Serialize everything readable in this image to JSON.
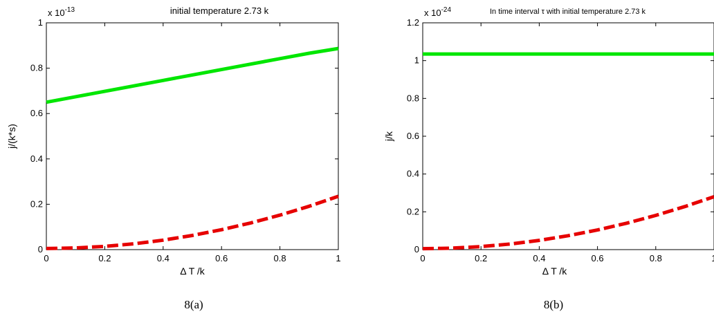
{
  "chart_data": [
    {
      "type": "line",
      "caption": "8(a)",
      "title": "initial temperature 2.73 k",
      "exponent_base": "x 10",
      "exponent_power": "-13",
      "xlabel": "Δ T  /k",
      "ylabel": "j/(k*s)",
      "xlim": [
        0,
        1
      ],
      "ylim": [
        0,
        1
      ],
      "xticks": [
        0,
        0.2,
        0.4,
        0.6,
        0.8,
        1
      ],
      "yticks": [
        0,
        0.2,
        0.4,
        0.6,
        0.8,
        1
      ],
      "xtick_labels": [
        "0",
        "0.2",
        "0.4",
        "0.6",
        "0.8",
        "1"
      ],
      "ytick_labels": [
        "0",
        "0.2",
        "0.4",
        "0.6",
        "0.8",
        "1"
      ],
      "grid": false,
      "series": [
        {
          "color": "#00e600",
          "style": "solid",
          "x": [
            0,
            0.1,
            0.2,
            0.3,
            0.4,
            0.5,
            0.6,
            0.7,
            0.8,
            0.9,
            1.0
          ],
          "y": [
            0.65,
            0.674,
            0.698,
            0.722,
            0.746,
            0.77,
            0.794,
            0.818,
            0.842,
            0.866,
            0.887
          ]
        },
        {
          "color": "#e60000",
          "style": "dashed",
          "x": [
            0,
            0.1,
            0.2,
            0.3,
            0.4,
            0.5,
            0.6,
            0.7,
            0.8,
            0.9,
            1.0
          ],
          "y": [
            0.005,
            0.0073,
            0.0142,
            0.0257,
            0.0418,
            0.0625,
            0.0878,
            0.1177,
            0.1522,
            0.1913,
            0.235
          ]
        }
      ]
    },
    {
      "type": "line",
      "caption": "8(b)",
      "title": "In time interval τ with initial temperature 2.73 k",
      "exponent_base": "x 10",
      "exponent_power": "-24",
      "xlabel": "Δ T  /k",
      "ylabel": "j/k",
      "xlim": [
        0,
        1
      ],
      "ylim": [
        0,
        1.2
      ],
      "xticks": [
        0,
        0.2,
        0.4,
        0.6,
        0.8,
        1
      ],
      "yticks": [
        0,
        0.2,
        0.4,
        0.6,
        0.8,
        1,
        1.2
      ],
      "xtick_labels": [
        "0",
        "0.2",
        "0.4",
        "0.6",
        "0.8",
        "1"
      ],
      "ytick_labels": [
        "0",
        "0.2",
        "0.4",
        "0.6",
        "0.8",
        "1",
        "1.2"
      ],
      "grid": false,
      "series": [
        {
          "color": "#00e600",
          "style": "solid",
          "x": [
            0,
            0.5,
            1.0
          ],
          "y": [
            1.035,
            1.035,
            1.035
          ]
        },
        {
          "color": "#e60000",
          "style": "dashed",
          "x": [
            0,
            0.1,
            0.2,
            0.3,
            0.4,
            0.5,
            0.6,
            0.7,
            0.8,
            0.9,
            1.0
          ],
          "y": [
            0.005,
            0.0078,
            0.016,
            0.0298,
            0.049,
            0.0738,
            0.104,
            0.1398,
            0.181,
            0.2278,
            0.28
          ]
        }
      ]
    }
  ]
}
